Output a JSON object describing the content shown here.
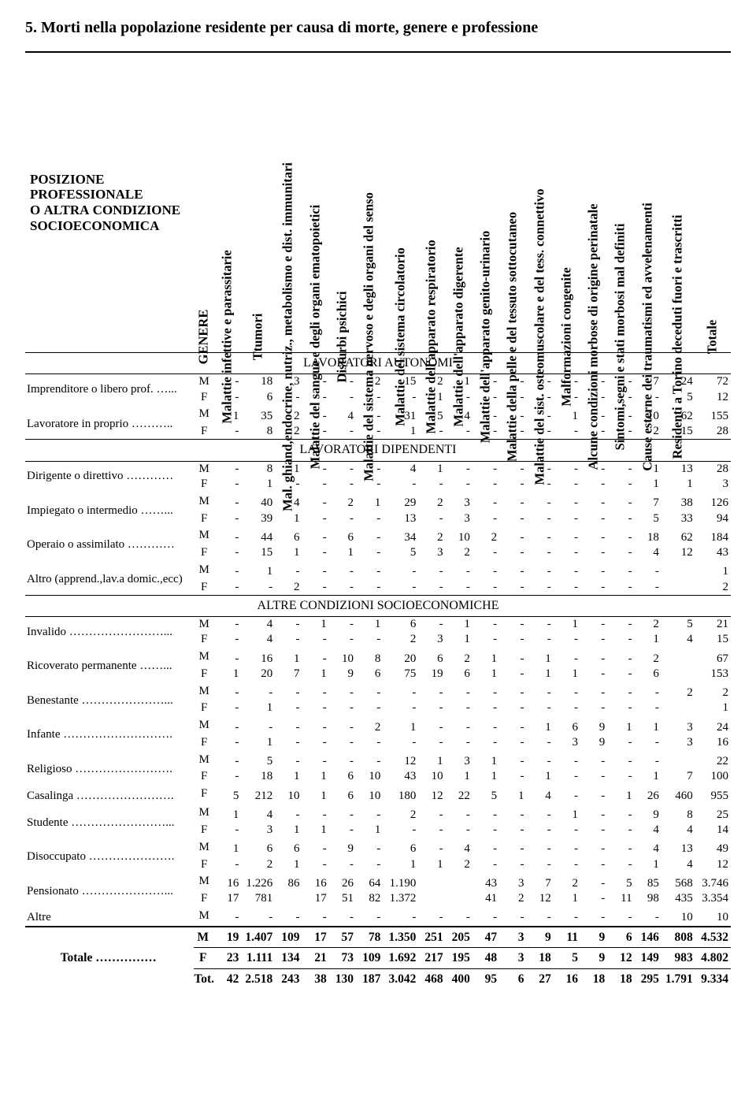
{
  "title": "5. Morti nella popolazione residente per causa di morte, genere e professione",
  "corner": "POSIZIONE PROFESSIONALE O ALTRA CONDIZIONE SOCIOECONOMICA",
  "headers": [
    "GENERE",
    "Malattie infettive e parassitarie",
    "Ttumori",
    "Mal. ghiand,endocrine, nutriz., metabolismo e dist. immunitari",
    "Malattie del sangue e degli organi ematopoietici",
    "Disturbi psichici",
    "Malattie del sistema nervoso e degli organi del senso",
    "Malattie del sistema circolatorio",
    "Malattie dell'apparato respiratorio",
    "Malattie dell'apparato digerente",
    "Malattie dell'apparato genito-urinario",
    "Malattie della pelle e del tessuto sottocutaneo",
    "Malattie del sist. osteomuscolare e del tess. connettivo",
    "Malformazioni congenite",
    "Alcune condizioni morbose di origine perinatale",
    "Sintomi,segni e stati morbosi mal definiti",
    "Cause esterne dei traumatismi ed avvelenamenti",
    "Residenti a Torino deceduti fuori e trascritti",
    "Totale"
  ],
  "sections": [
    {
      "title": "LAVORATORI AUTONOMI",
      "groups": [
        {
          "label": "Imprenditore o libero prof. …...",
          "rows": [
            {
              "g": "M",
              "v": [
                "-",
                "18",
                "3",
                "-",
                "-",
                "2",
                "15",
                "2",
                "1",
                "-",
                "-",
                "-",
                "-",
                "-",
                "-",
                "7",
                "24",
                "72"
              ]
            },
            {
              "g": "F",
              "v": [
                "-",
                "6",
                "-",
                "-",
                "-",
                "-",
                "-",
                "1",
                "-",
                "-",
                "-",
                "-",
                "-",
                "-",
                "-",
                "-",
                "5",
                "12"
              ]
            }
          ]
        },
        {
          "label": "Lavoratore in proprio ………..",
          "rows": [
            {
              "g": "M",
              "v": [
                "1",
                "35",
                "2",
                "-",
                "4",
                "-",
                "31",
                "5",
                "4",
                "-",
                "-",
                "-",
                "1",
                "-",
                "-",
                "10",
                "62",
                "155"
              ]
            },
            {
              "g": "F",
              "v": [
                "-",
                "8",
                "2",
                "-",
                "-",
                "-",
                "1",
                "-",
                "-",
                "-",
                "-",
                "-",
                "-",
                "-",
                "-",
                "2",
                "15",
                "28"
              ]
            }
          ]
        }
      ]
    },
    {
      "title": "LAVORATORI DIPENDENTI",
      "groups": [
        {
          "label": "Dirigente o direttivo …………",
          "rows": [
            {
              "g": "M",
              "v": [
                "-",
                "8",
                "1",
                "-",
                "-",
                "-",
                "4",
                "1",
                "-",
                "-",
                "-",
                "-",
                "-",
                "-",
                "-",
                "1",
                "13",
                "28"
              ]
            },
            {
              "g": "F",
              "v": [
                "-",
                "1",
                "-",
                "-",
                "-",
                "-",
                "-",
                "-",
                "-",
                "-",
                "-",
                "-",
                "-",
                "-",
                "-",
                "1",
                "1",
                "3"
              ]
            }
          ]
        },
        {
          "label": "Impiegato o intermedio ……...",
          "rows": [
            {
              "g": "M",
              "v": [
                "-",
                "40",
                "4",
                "-",
                "2",
                "1",
                "29",
                "2",
                "3",
                "-",
                "-",
                "-",
                "-",
                "-",
                "-",
                "7",
                "38",
                "126"
              ]
            },
            {
              "g": "F",
              "v": [
                "-",
                "39",
                "1",
                "-",
                "-",
                "-",
                "13",
                "-",
                "3",
                "-",
                "-",
                "-",
                "-",
                "-",
                "-",
                "5",
                "33",
                "94"
              ]
            }
          ]
        },
        {
          "label": "Operaio o assimilato …………",
          "rows": [
            {
              "g": "M",
              "v": [
                "-",
                "44",
                "6",
                "-",
                "6",
                "-",
                "34",
                "2",
                "10",
                "2",
                "-",
                "-",
                "-",
                "-",
                "-",
                "18",
                "62",
                "184"
              ]
            },
            {
              "g": "F",
              "v": [
                "-",
                "15",
                "1",
                "-",
                "1",
                "-",
                "5",
                "3",
                "2",
                "-",
                "-",
                "-",
                "-",
                "-",
                "-",
                "4",
                "12",
                "43"
              ]
            }
          ]
        },
        {
          "label": "Altro (apprend.,lav.a domic.,ecc)",
          "rows": [
            {
              "g": "M",
              "v": [
                "-",
                "1",
                "-",
                "-",
                "-",
                "-",
                "-",
                "-",
                "-",
                "-",
                "-",
                "-",
                "-",
                "-",
                "-",
                "-",
                "",
                "1"
              ]
            },
            {
              "g": "F",
              "v": [
                "-",
                "-",
                "2",
                "-",
                "-",
                "-",
                "-",
                "-",
                "-",
                "-",
                "-",
                "-",
                "-",
                "-",
                "-",
                "-",
                "",
                "2"
              ]
            }
          ]
        }
      ]
    },
    {
      "title": "ALTRE CONDIZIONI SOCIOECONOMICHE",
      "groups": [
        {
          "label": "Invalido ……………………...",
          "rows": [
            {
              "g": "M",
              "v": [
                "-",
                "4",
                "-",
                "1",
                "-",
                "1",
                "6",
                "-",
                "1",
                "-",
                "-",
                "-",
                "1",
                "-",
                "-",
                "2",
                "5",
                "21"
              ]
            },
            {
              "g": "F",
              "v": [
                "-",
                "4",
                "-",
                "-",
                "-",
                "-",
                "2",
                "3",
                "1",
                "-",
                "-",
                "-",
                "-",
                "-",
                "-",
                "1",
                "4",
                "15"
              ]
            }
          ]
        },
        {
          "label": "Ricoverato permanente ……...",
          "rows": [
            {
              "g": "M",
              "v": [
                "-",
                "16",
                "1",
                "-",
                "10",
                "8",
                "20",
                "6",
                "2",
                "1",
                "-",
                "1",
                "-",
                "-",
                "-",
                "2",
                "",
                "67"
              ]
            },
            {
              "g": "F",
              "v": [
                "1",
                "20",
                "7",
                "1",
                "9",
                "6",
                "75",
                "19",
                "6",
                "1",
                "-",
                "1",
                "1",
                "-",
                "-",
                "6",
                "",
                "153"
              ]
            }
          ]
        },
        {
          "label": "Benestante …………………...",
          "rows": [
            {
              "g": "M",
              "v": [
                "-",
                "-",
                "-",
                "-",
                "-",
                "-",
                "-",
                "-",
                "-",
                "-",
                "-",
                "-",
                "-",
                "-",
                "-",
                "-",
                "2",
                "2"
              ]
            },
            {
              "g": "F",
              "v": [
                "-",
                "1",
                "-",
                "-",
                "-",
                "-",
                "-",
                "-",
                "-",
                "-",
                "-",
                "-",
                "-",
                "-",
                "-",
                "-",
                "",
                "1"
              ]
            }
          ]
        },
        {
          "label": "Infante ……………………….",
          "rows": [
            {
              "g": "M",
              "v": [
                "-",
                "-",
                "-",
                "-",
                "-",
                "2",
                "1",
                "-",
                "-",
                "-",
                "-",
                "1",
                "6",
                "9",
                "1",
                "1",
                "3",
                "24"
              ]
            },
            {
              "g": "F",
              "v": [
                "-",
                "1",
                "-",
                "-",
                "-",
                "-",
                "-",
                "-",
                "-",
                "-",
                "-",
                "-",
                "3",
                "9",
                "-",
                "-",
                "3",
                "16"
              ]
            }
          ]
        },
        {
          "label": "Religioso …………………….",
          "rows": [
            {
              "g": "M",
              "v": [
                "-",
                "5",
                "-",
                "-",
                "-",
                "-",
                "12",
                "1",
                "3",
                "1",
                "-",
                "-",
                "-",
                "-",
                "-",
                "-",
                "",
                "22"
              ]
            },
            {
              "g": "F",
              "v": [
                "-",
                "18",
                "1",
                "1",
                "6",
                "10",
                "43",
                "10",
                "1",
                "1",
                "-",
                "1",
                "-",
                "-",
                "-",
                "1",
                "7",
                "100"
              ]
            }
          ]
        },
        {
          "label": "Casalinga …………………….",
          "rows": [
            {
              "g": "F",
              "v": [
                "5",
                "212",
                "10",
                "1",
                "6",
                "10",
                "180",
                "12",
                "22",
                "5",
                "1",
                "4",
                "-",
                "-",
                "1",
                "26",
                "460",
                "955"
              ]
            }
          ]
        },
        {
          "label": "Studente ……………………...",
          "rows": [
            {
              "g": "M",
              "v": [
                "1",
                "4",
                "-",
                "-",
                "-",
                "-",
                "2",
                "-",
                "-",
                "-",
                "-",
                "-",
                "1",
                "-",
                "-",
                "9",
                "8",
                "25"
              ]
            },
            {
              "g": "F",
              "v": [
                "-",
                "3",
                "1",
                "1",
                "-",
                "1",
                "-",
                "-",
                "-",
                "-",
                "-",
                "-",
                "-",
                "-",
                "-",
                "4",
                "4",
                "14"
              ]
            }
          ]
        },
        {
          "label": "Disoccupato ………………….",
          "rows": [
            {
              "g": "M",
              "v": [
                "1",
                "6",
                "6",
                "-",
                "9",
                "-",
                "6",
                "-",
                "4",
                "-",
                "-",
                "-",
                "-",
                "-",
                "-",
                "4",
                "13",
                "49"
              ]
            },
            {
              "g": "F",
              "v": [
                "-",
                "2",
                "1",
                "-",
                "-",
                "-",
                "1",
                "1",
                "2",
                "-",
                "-",
                "-",
                "-",
                "-",
                "-",
                "1",
                "4",
                "12"
              ]
            }
          ]
        },
        {
          "label": "Pensionato …………………...",
          "rows": [
            {
              "g": "M",
              "v": [
                "16",
                "1.226",
                "86",
                "16",
                "26",
                "64",
                "1.190",
                "",
                "",
                "43",
                "3",
                "7",
                "2",
                "-",
                "5",
                "85",
                "568",
                "3.746"
              ]
            },
            {
              "g": "F",
              "v": [
                "17",
                "781",
                "",
                "17",
                "51",
                "82",
                "1.372",
                "",
                "",
                "41",
                "2",
                "12",
                "1",
                "-",
                "11",
                "98",
                "435",
                "3.354"
              ]
            }
          ]
        },
        {
          "label": "Altre",
          "rows": [
            {
              "g": "M",
              "v": [
                "-",
                "-",
                "-",
                "-",
                "-",
                "-",
                "-",
                "-",
                "-",
                "-",
                "-",
                "-",
                "-",
                "-",
                "-",
                "-",
                "10",
                "10"
              ]
            }
          ]
        }
      ]
    }
  ],
  "totals": {
    "label": "Totale ……………",
    "rows": [
      {
        "g": "M",
        "v": [
          "19",
          "1.407",
          "109",
          "17",
          "57",
          "78",
          "1.350",
          "251",
          "205",
          "47",
          "3",
          "9",
          "11",
          "9",
          "6",
          "146",
          "808",
          "4.532"
        ]
      },
      {
        "g": "F",
        "v": [
          "23",
          "1.111",
          "134",
          "21",
          "73",
          "109",
          "1.692",
          "217",
          "195",
          "48",
          "3",
          "18",
          "5",
          "9",
          "12",
          "149",
          "983",
          "4.802"
        ]
      },
      {
        "g": "Tot.",
        "v": [
          "42",
          "2.518",
          "243",
          "38",
          "130",
          "187",
          "3.042",
          "468",
          "400",
          "95",
          "6",
          "27",
          "16",
          "18",
          "18",
          "295",
          "1.791",
          "9.334"
        ]
      }
    ]
  }
}
